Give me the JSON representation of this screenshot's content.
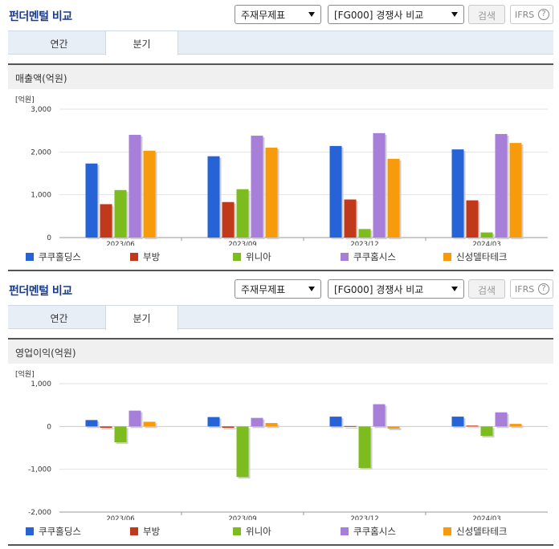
{
  "sections": [
    {
      "title": "펀더멘털 비교",
      "select1": "주재무제표",
      "select2": "[FG000] 경쟁사 비교",
      "search_label": "검색",
      "ifrs_label": "IFRS",
      "ifrs_help": "?",
      "tabs": [
        {
          "label": "연간"
        },
        {
          "label": "분기"
        }
      ],
      "active_tab": 1,
      "chart_title": "매출액(억원)"
    },
    {
      "title": "펀더멘털 비교",
      "select1": "주재무제표",
      "select2": "[FG000] 경쟁사 비교",
      "search_label": "검색",
      "ifrs_label": "IFRS",
      "ifrs_help": "?",
      "tabs": [
        {
          "label": "연간"
        },
        {
          "label": "분기"
        }
      ],
      "active_tab": 1,
      "chart_title": "영업이익(억원)"
    }
  ],
  "colors": {
    "쿠쿠홀딩스": "#2563d6",
    "부방": "#c0391b",
    "위니아": "#7cbc1e",
    "쿠쿠홈시스": "#a77fd8",
    "신성델타테크": "#f79a0c"
  },
  "chart_data": [
    {
      "type": "bar",
      "title": "매출액(억원)",
      "unit_label": "[억원]",
      "categories": [
        "2023/06",
        "2023/09",
        "2023/12",
        "2024/03"
      ],
      "ylim": [
        0,
        3000
      ],
      "yticks": [
        0,
        1000,
        2000,
        3000
      ],
      "ytick_labels": [
        "0",
        "1,000",
        "2,000",
        "3,000"
      ],
      "legend_position": "bottom",
      "series": [
        {
          "name": "쿠쿠홀딩스",
          "values": [
            1730,
            1900,
            2140,
            2060
          ]
        },
        {
          "name": "부방",
          "values": [
            780,
            830,
            890,
            870
          ]
        },
        {
          "name": "위니아",
          "values": [
            1110,
            1130,
            200,
            120
          ]
        },
        {
          "name": "쿠쿠홈시스",
          "values": [
            2400,
            2380,
            2440,
            2420
          ]
        },
        {
          "name": "신성델타테크",
          "values": [
            2030,
            2100,
            1840,
            2210
          ]
        }
      ]
    },
    {
      "type": "bar",
      "title": "영업이익(억원)",
      "unit_label": "[억원]",
      "categories": [
        "2023/06",
        "2023/09",
        "2023/12",
        "2024/03"
      ],
      "ylim": [
        -2000,
        1000
      ],
      "yticks": [
        -2000,
        -1000,
        0,
        1000
      ],
      "ytick_labels": [
        "-2,000",
        "-1,000",
        "0",
        "1,000"
      ],
      "legend_position": "bottom",
      "series": [
        {
          "name": "쿠쿠홀딩스",
          "values": [
            150,
            220,
            230,
            230
          ]
        },
        {
          "name": "부방",
          "values": [
            -30,
            -30,
            10,
            20
          ]
        },
        {
          "name": "위니아",
          "values": [
            -370,
            -1180,
            -970,
            -220
          ]
        },
        {
          "name": "쿠쿠홈시스",
          "values": [
            370,
            200,
            520,
            330
          ]
        },
        {
          "name": "신성델타테크",
          "values": [
            110,
            80,
            -50,
            60
          ]
        }
      ]
    }
  ]
}
